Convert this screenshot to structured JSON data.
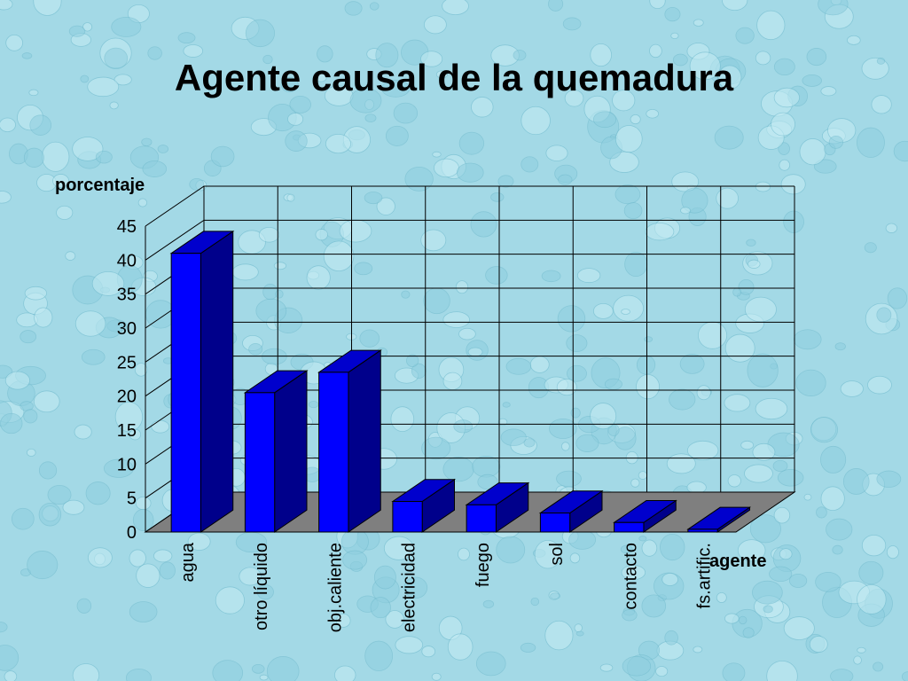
{
  "chart_data": {
    "type": "bar",
    "title": "Agente causal de la quemadura",
    "ylabel": "porcentaje",
    "xlabel": "agente",
    "categories": [
      "agua",
      "otro líquido",
      "obj.caliente",
      "electricidad",
      "fuego",
      "sol",
      "contacto",
      "fs.artific."
    ],
    "values": [
      41,
      20.5,
      23.5,
      4.5,
      4,
      2.8,
      1.4,
      0.4
    ],
    "ylim": [
      0,
      45
    ],
    "yticks": [
      0,
      5,
      10,
      15,
      20,
      25,
      30,
      35,
      40,
      45
    ],
    "style": "3d-column",
    "grid": true,
    "colors": {
      "front": "#0000ff",
      "side": "#00008b",
      "top": "#0000cd",
      "floor": "#7f7f7f",
      "background": "#a6dbe8"
    }
  }
}
